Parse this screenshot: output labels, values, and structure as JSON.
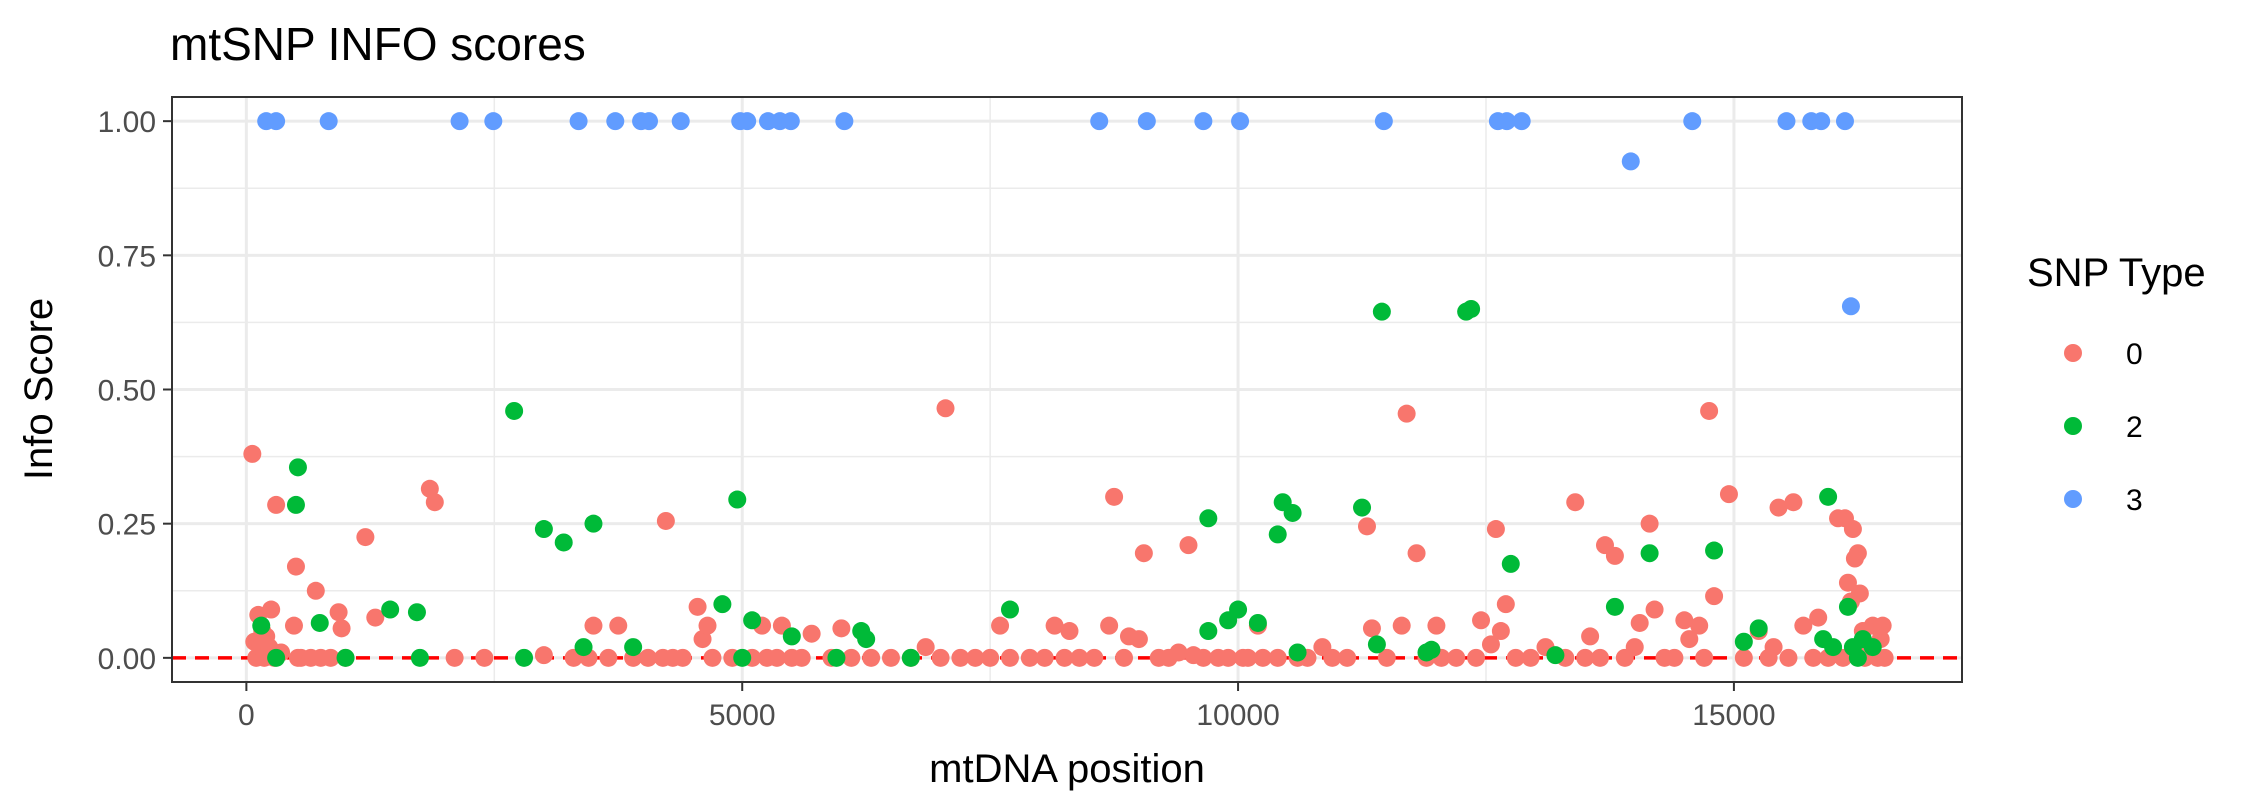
{
  "chart_data": {
    "type": "scatter",
    "title": "mtSNP INFO scores",
    "xlabel": "mtDNA position",
    "ylabel": "Info Score",
    "xlim": [
      -750,
      17300
    ],
    "ylim": [
      -0.045,
      1.045
    ],
    "x_ticks": [
      0,
      5000,
      10000,
      15000
    ],
    "x_tick_labels": [
      "0",
      "5000",
      "10000",
      "15000"
    ],
    "y_ticks": [
      0,
      0.25,
      0.5,
      0.75,
      1.0
    ],
    "y_tick_labels": [
      "0.00",
      "0.25",
      "0.50",
      "0.75",
      "1.00"
    ],
    "grid": true,
    "reference_line": {
      "y": 0,
      "style": "dashed",
      "color": "#ff0000"
    },
    "legend": {
      "title": "SNP Type",
      "position": "right",
      "entries": [
        {
          "label": "0",
          "color": "#F8766D"
        },
        {
          "label": "2",
          "color": "#00BA38"
        },
        {
          "label": "3",
          "color": "#619CFF"
        }
      ]
    },
    "series": [
      {
        "name": "0",
        "color": "#F8766D",
        "points": [
          [
            60,
            0.38
          ],
          [
            80,
            0.03
          ],
          [
            100,
            0.0
          ],
          [
            120,
            0.08
          ],
          [
            140,
            0.02
          ],
          [
            160,
            0.05
          ],
          [
            180,
            0.0
          ],
          [
            200,
            0.04
          ],
          [
            230,
            0.02
          ],
          [
            250,
            0.09
          ],
          [
            280,
            0.0
          ],
          [
            300,
            0.285
          ],
          [
            350,
            0.01
          ],
          [
            480,
            0.06
          ],
          [
            500,
            0.17
          ],
          [
            520,
            0.0
          ],
          [
            550,
            0.0
          ],
          [
            650,
            0.0
          ],
          [
            700,
            0.125
          ],
          [
            750,
            0.0
          ],
          [
            850,
            0.0
          ],
          [
            930,
            0.085
          ],
          [
            960,
            0.055
          ],
          [
            1000,
            0.0
          ],
          [
            1200,
            0.225
          ],
          [
            1300,
            0.075
          ],
          [
            1850,
            0.315
          ],
          [
            1900,
            0.29
          ],
          [
            2100,
            0.0
          ],
          [
            2400,
            0.0
          ],
          [
            3000,
            0.005
          ],
          [
            3300,
            0.0
          ],
          [
            3450,
            0.0
          ],
          [
            3500,
            0.06
          ],
          [
            3650,
            0.0
          ],
          [
            3750,
            0.06
          ],
          [
            3900,
            0.0
          ],
          [
            4050,
            0.0
          ],
          [
            4200,
            0.0
          ],
          [
            4230,
            0.255
          ],
          [
            4300,
            0.0
          ],
          [
            4400,
            0.0
          ],
          [
            4550,
            0.095
          ],
          [
            4600,
            0.035
          ],
          [
            4650,
            0.06
          ],
          [
            4700,
            0.0
          ],
          [
            4900,
            0.0
          ],
          [
            5100,
            0.0
          ],
          [
            5200,
            0.06
          ],
          [
            5250,
            0.0
          ],
          [
            5350,
            0.0
          ],
          [
            5400,
            0.06
          ],
          [
            5500,
            0.0
          ],
          [
            5600,
            0.0
          ],
          [
            5700,
            0.045
          ],
          [
            5900,
            0.0
          ],
          [
            6000,
            0.055
          ],
          [
            6100,
            0.0
          ],
          [
            6300,
            0.0
          ],
          [
            6500,
            0.0
          ],
          [
            6700,
            0.0
          ],
          [
            6850,
            0.02
          ],
          [
            7000,
            0.0
          ],
          [
            7050,
            0.465
          ],
          [
            7200,
            0.0
          ],
          [
            7350,
            0.0
          ],
          [
            7500,
            0.0
          ],
          [
            7600,
            0.06
          ],
          [
            7700,
            0.0
          ],
          [
            7900,
            0.0
          ],
          [
            8050,
            0.0
          ],
          [
            8150,
            0.06
          ],
          [
            8250,
            0.0
          ],
          [
            8300,
            0.05
          ],
          [
            8400,
            0.0
          ],
          [
            8550,
            0.0
          ],
          [
            8700,
            0.06
          ],
          [
            8750,
            0.3
          ],
          [
            8850,
            0.0
          ],
          [
            8900,
            0.04
          ],
          [
            9000,
            0.035
          ],
          [
            9050,
            0.195
          ],
          [
            9200,
            0.0
          ],
          [
            9300,
            0.0
          ],
          [
            9400,
            0.01
          ],
          [
            9500,
            0.21
          ],
          [
            9550,
            0.005
          ],
          [
            9650,
            0.0
          ],
          [
            9800,
            0.0
          ],
          [
            9900,
            0.0
          ],
          [
            10050,
            0.0
          ],
          [
            10100,
            0.0
          ],
          [
            10200,
            0.06
          ],
          [
            10250,
            0.0
          ],
          [
            10400,
            0.0
          ],
          [
            10600,
            0.0
          ],
          [
            10700,
            0.0
          ],
          [
            10850,
            0.02
          ],
          [
            10950,
            0.0
          ],
          [
            11100,
            0.0
          ],
          [
            11300,
            0.245
          ],
          [
            11350,
            0.055
          ],
          [
            11500,
            0.0
          ],
          [
            11650,
            0.06
          ],
          [
            11700,
            0.455
          ],
          [
            11800,
            0.195
          ],
          [
            11900,
            0.0
          ],
          [
            12000,
            0.06
          ],
          [
            12050,
            0.0
          ],
          [
            12200,
            0.0
          ],
          [
            12400,
            0.0
          ],
          [
            12450,
            0.07
          ],
          [
            12550,
            0.025
          ],
          [
            12600,
            0.24
          ],
          [
            12650,
            0.05
          ],
          [
            12700,
            0.1
          ],
          [
            12800,
            0.0
          ],
          [
            12950,
            0.0
          ],
          [
            13100,
            0.02
          ],
          [
            13300,
            0.0
          ],
          [
            13400,
            0.29
          ],
          [
            13500,
            0.0
          ],
          [
            13550,
            0.04
          ],
          [
            13650,
            0.0
          ],
          [
            13700,
            0.21
          ],
          [
            13800,
            0.19
          ],
          [
            13900,
            0.0
          ],
          [
            14000,
            0.02
          ],
          [
            14050,
            0.065
          ],
          [
            14150,
            0.25
          ],
          [
            14200,
            0.09
          ],
          [
            14300,
            0.0
          ],
          [
            14400,
            0.0
          ],
          [
            14500,
            0.07
          ],
          [
            14550,
            0.035
          ],
          [
            14650,
            0.06
          ],
          [
            14700,
            0.0
          ],
          [
            14750,
            0.46
          ],
          [
            14800,
            0.115
          ],
          [
            14950,
            0.305
          ],
          [
            15100,
            0.0
          ],
          [
            15250,
            0.05
          ],
          [
            15350,
            0.0
          ],
          [
            15400,
            0.02
          ],
          [
            15450,
            0.28
          ],
          [
            15550,
            0.0
          ],
          [
            15600,
            0.29
          ],
          [
            15700,
            0.06
          ],
          [
            15800,
            0.0
          ],
          [
            15850,
            0.075
          ],
          [
            15950,
            0.0
          ],
          [
            16050,
            0.26
          ],
          [
            16100,
            0.0
          ],
          [
            16120,
            0.26
          ],
          [
            16150,
            0.14
          ],
          [
            16180,
            0.105
          ],
          [
            16200,
            0.24
          ],
          [
            16220,
            0.185
          ],
          [
            16250,
            0.195
          ],
          [
            16270,
            0.12
          ],
          [
            16300,
            0.05
          ],
          [
            16320,
            0.0
          ],
          [
            16350,
            0.02
          ],
          [
            16400,
            0.06
          ],
          [
            16450,
            0.0
          ],
          [
            16480,
            0.035
          ],
          [
            16500,
            0.06
          ],
          [
            16520,
            0.0
          ]
        ]
      },
      {
        "name": "2",
        "color": "#00BA38",
        "points": [
          [
            150,
            0.06
          ],
          [
            300,
            0.0
          ],
          [
            500,
            0.285
          ],
          [
            520,
            0.355
          ],
          [
            740,
            0.065
          ],
          [
            1000,
            0.0
          ],
          [
            1450,
            0.09
          ],
          [
            1720,
            0.085
          ],
          [
            1750,
            0.0
          ],
          [
            2700,
            0.46
          ],
          [
            2800,
            0.0
          ],
          [
            3000,
            0.24
          ],
          [
            3200,
            0.215
          ],
          [
            3400,
            0.02
          ],
          [
            3500,
            0.25
          ],
          [
            3900,
            0.02
          ],
          [
            4800,
            0.1
          ],
          [
            4950,
            0.295
          ],
          [
            5000,
            0.0
          ],
          [
            5100,
            0.07
          ],
          [
            5500,
            0.04
          ],
          [
            5950,
            0.0
          ],
          [
            6200,
            0.05
          ],
          [
            6250,
            0.035
          ],
          [
            6700,
            0.0
          ],
          [
            7700,
            0.09
          ],
          [
            9700,
            0.26
          ],
          [
            9700,
            0.05
          ],
          [
            9900,
            0.07
          ],
          [
            10000,
            0.09
          ],
          [
            10200,
            0.065
          ],
          [
            10400,
            0.23
          ],
          [
            10450,
            0.29
          ],
          [
            10550,
            0.27
          ],
          [
            10600,
            0.01
          ],
          [
            11250,
            0.28
          ],
          [
            11400,
            0.025
          ],
          [
            11450,
            0.645
          ],
          [
            11900,
            0.01
          ],
          [
            11950,
            0.015
          ],
          [
            12300,
            0.645
          ],
          [
            12350,
            0.65
          ],
          [
            12750,
            0.175
          ],
          [
            13200,
            0.005
          ],
          [
            13800,
            0.095
          ],
          [
            14150,
            0.195
          ],
          [
            14800,
            0.2
          ],
          [
            15100,
            0.03
          ],
          [
            15250,
            0.055
          ],
          [
            15900,
            0.035
          ],
          [
            15950,
            0.3
          ],
          [
            16000,
            0.02
          ],
          [
            16150,
            0.095
          ],
          [
            16200,
            0.02
          ],
          [
            16250,
            0.0
          ],
          [
            16300,
            0.035
          ],
          [
            16400,
            0.02
          ]
        ]
      },
      {
        "name": "3",
        "color": "#619CFF",
        "points": [
          [
            200,
            1.0
          ],
          [
            300,
            1.0
          ],
          [
            830,
            1.0
          ],
          [
            2150,
            1.0
          ],
          [
            2490,
            1.0
          ],
          [
            3350,
            1.0
          ],
          [
            3720,
            1.0
          ],
          [
            3980,
            1.0
          ],
          [
            4060,
            1.0
          ],
          [
            4380,
            1.0
          ],
          [
            4980,
            1.0
          ],
          [
            5050,
            1.0
          ],
          [
            5260,
            1.0
          ],
          [
            5380,
            1.0
          ],
          [
            5490,
            1.0
          ],
          [
            6030,
            1.0
          ],
          [
            8600,
            1.0
          ],
          [
            9080,
            1.0
          ],
          [
            9650,
            1.0
          ],
          [
            10020,
            1.0
          ],
          [
            11470,
            1.0
          ],
          [
            12620,
            1.0
          ],
          [
            12710,
            1.0
          ],
          [
            12860,
            1.0
          ],
          [
            13960,
            0.925
          ],
          [
            14580,
            1.0
          ],
          [
            15530,
            1.0
          ],
          [
            15780,
            1.0
          ],
          [
            15880,
            1.0
          ],
          [
            16120,
            1.0
          ],
          [
            16180,
            0.655
          ]
        ]
      }
    ]
  }
}
